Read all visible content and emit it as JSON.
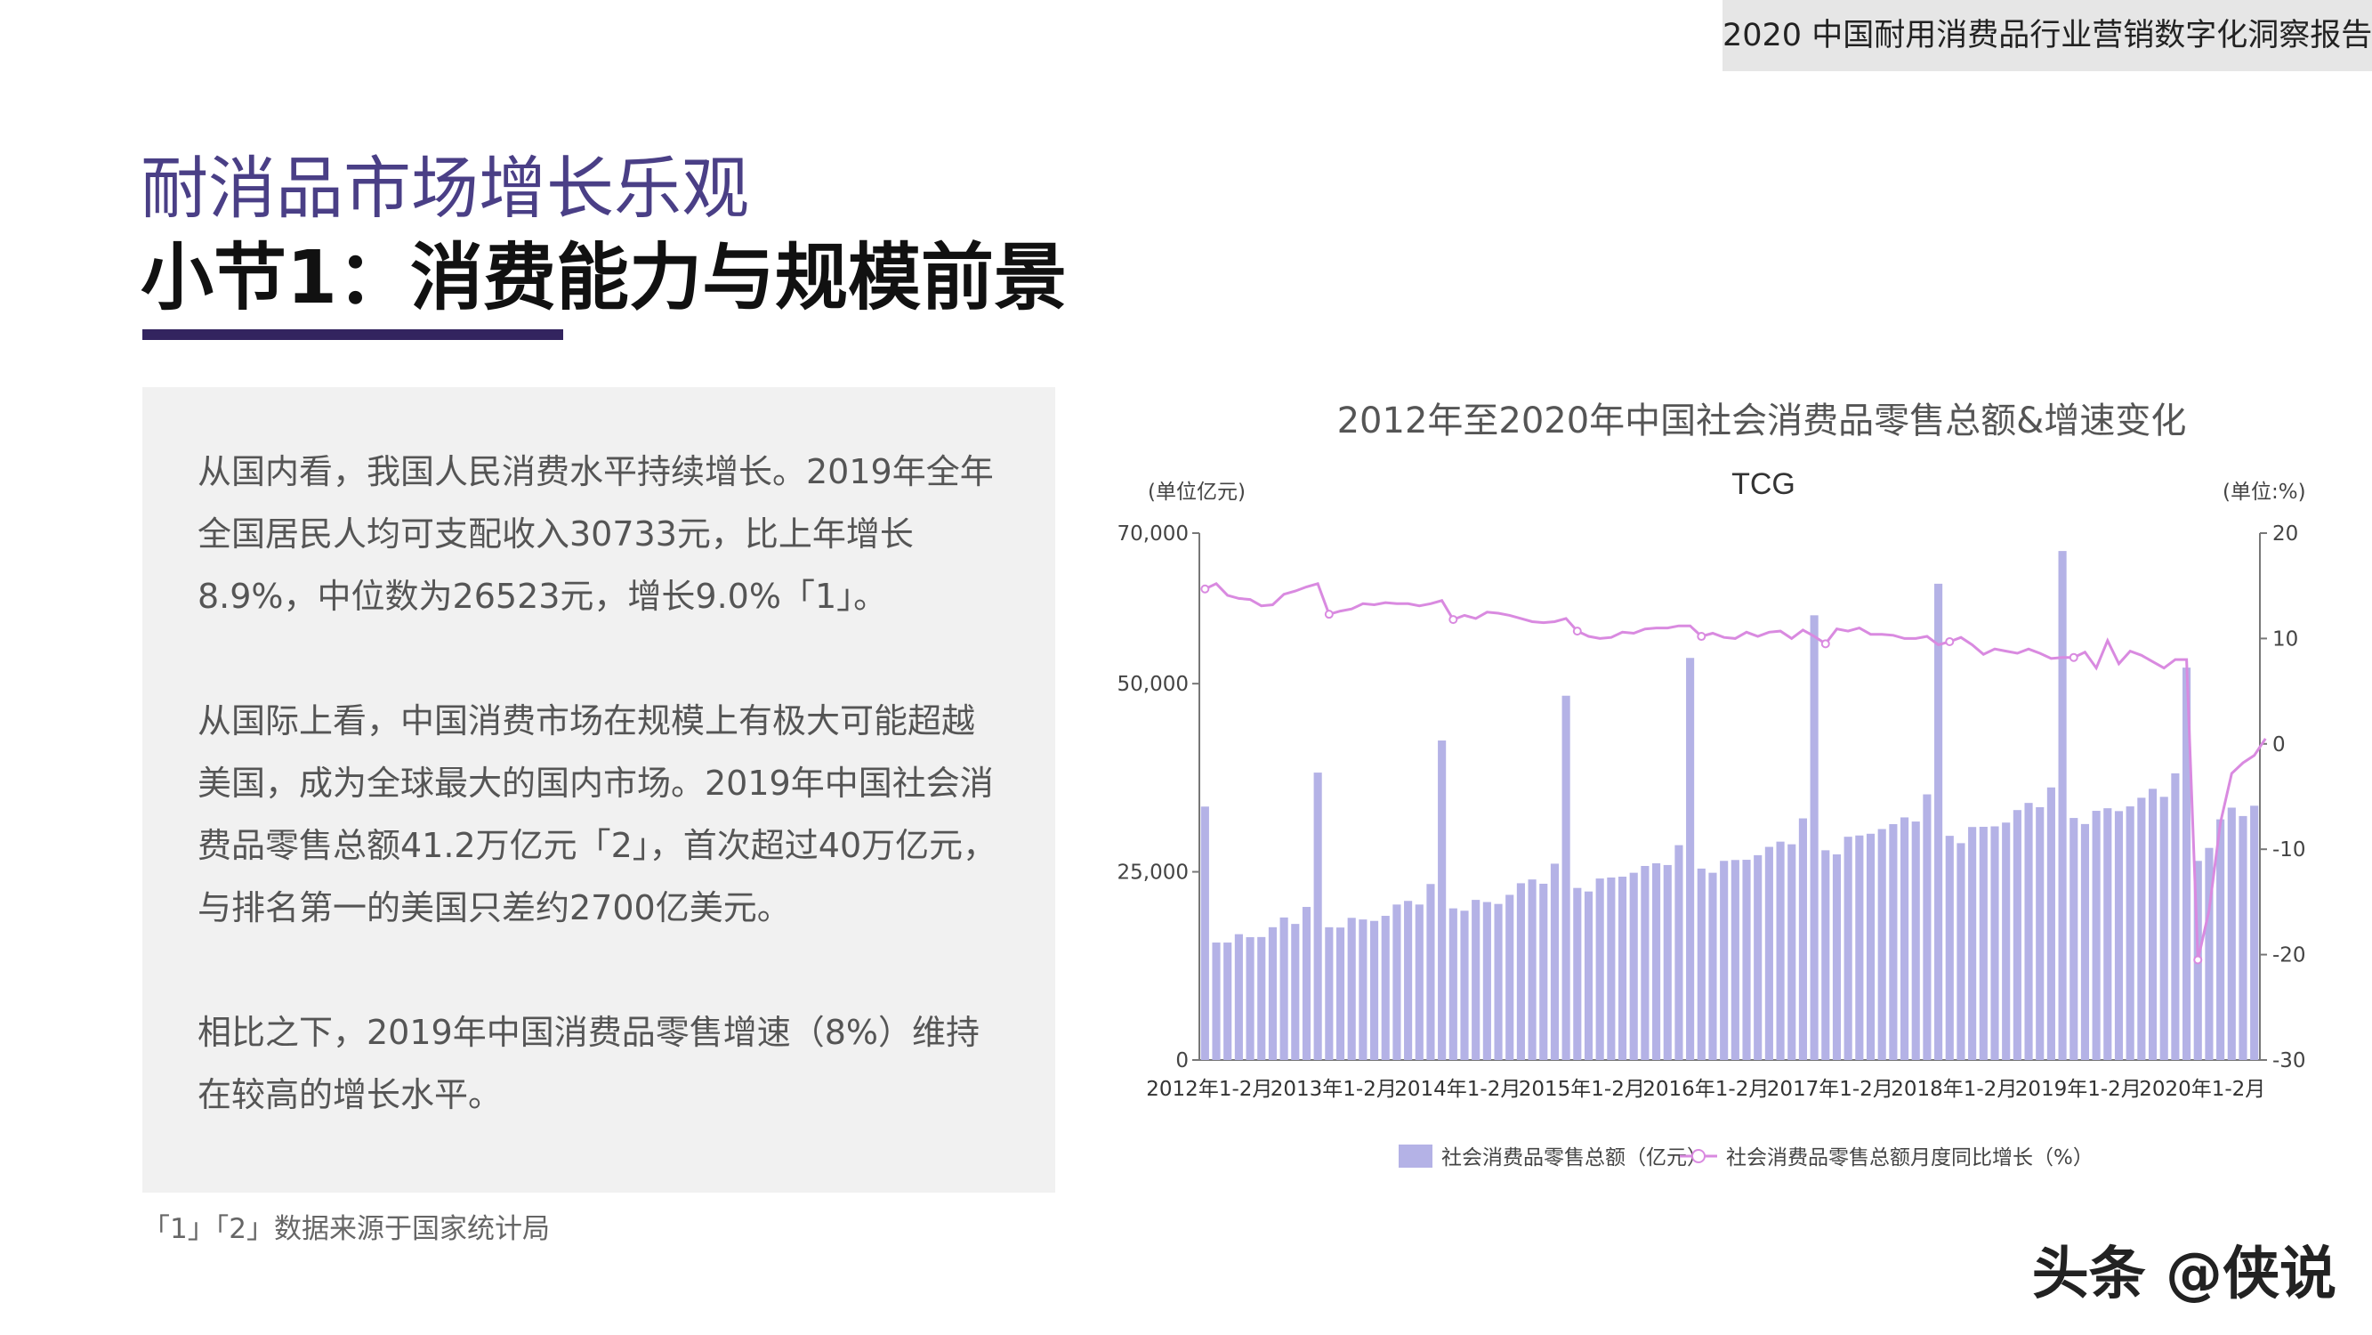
{
  "header": {
    "report_title": "2020 中国耐用消费品行业营销数字化洞察报告"
  },
  "titles": {
    "main": "耐消品市场增长乐观",
    "section": "小节1：消费能力与规模前景"
  },
  "paragraphs": [
    "从国内看，我国人民消费水平持续增长。2019年全年全国居民人均可支配收入30733元，比上年增长8.9%，中位数为26523元，增长9.0%「1」。",
    "从国际上看，中国消费市场在规模上有极大可能超越美国，成为全球最大的国内市场。2019年中国社会消费品零售总额41.2万亿元「2」，首次超过40万亿元，与排名第一的美国只差约2700亿美元。",
    "相比之下，2019年中国消费品零售增速（8%）维持在较高的增长水平。"
  ],
  "footnote": "「1」「2」数据来源于国家统计局",
  "watermark": "头条 @侠说",
  "colors": {
    "bar": "#b4b2e6",
    "line": "#d98ae0",
    "title_purple": "#4a3f86",
    "title_bar": "#33245f"
  },
  "chart_data": {
    "type": "bar+line",
    "outer_title": "2012年至2020年中国社会消费品零售总额&增速变化",
    "title": "TCG",
    "y_left_unit": "(单位亿元)",
    "y_right_unit": "(单位:%)",
    "y_left_range": [
      0,
      70000
    ],
    "y_right_range": [
      -30,
      20
    ],
    "y_left_ticks": [
      0,
      25000,
      50000,
      70000
    ],
    "y_left_tick_labels": [
      "0",
      "25,000",
      "50,000",
      "70,000"
    ],
    "y_right_ticks": [
      20,
      10,
      0,
      -10,
      -20,
      -30
    ],
    "x_tick_labels": [
      "2012年1-2月",
      "2013年1-2月",
      "2014年1-2月",
      "2015年1-2月",
      "2016年1-2月",
      "2017年1-2月",
      "2018年1-2月",
      "2019年1-2月",
      "2020年1-2月"
    ],
    "legend_position": "bottom",
    "series": [
      {
        "name": "社会消费品零售总额（亿元）",
        "type": "bar",
        "values": [
          33669,
          15604,
          15603,
          16715,
          16315,
          16334,
          17640,
          18934,
          18077,
          20335,
          38182,
          17637,
          17600,
          18886,
          18670,
          18477,
          19151,
          20653,
          21135,
          20654,
          23381,
          42445,
          20146,
          19830,
          21271,
          20985,
          20733,
          21942,
          23484,
          23984,
          23417,
          26081,
          48395,
          22858,
          22387,
          24111,
          24244,
          24355,
          24875,
          25777,
          26134,
          25904,
          28541,
          53419,
          25431,
          24873,
          26454,
          26570,
          26598,
          27210,
          28315,
          29010,
          28658,
          32101,
          59081,
          27863,
          27318,
          29659,
          29829,
          30059,
          30681,
          31339,
          32230,
          31681,
          35291,
          63275,
          29783,
          28807,
          30955,
          30981,
          31039,
          31542,
          33203,
          34153,
          33587,
          36211,
          67623,
          32154,
          31349,
          33103,
          33447,
          33067,
          33692,
          34841,
          36030,
          34959,
          38082,
          52130,
          26450,
          28178,
          31973,
          33526,
          32410,
          33781
        ]
      },
      {
        "name": "社会消费品零售总额月度同比增长（%）",
        "type": "line",
        "values": [
          14.7,
          15.2,
          14.1,
          13.8,
          13.7,
          13.1,
          13.2,
          14.2,
          14.5,
          14.9,
          15.2,
          12.3,
          12.6,
          12.8,
          13.3,
          13.2,
          13.4,
          13.3,
          13.3,
          13.1,
          13.3,
          13.6,
          11.8,
          12.2,
          11.9,
          12.5,
          12.4,
          12.2,
          11.9,
          11.6,
          11.5,
          11.6,
          11.9,
          10.7,
          10.2,
          10.0,
          10.1,
          10.6,
          10.5,
          10.9,
          11.0,
          11.0,
          11.2,
          11.2,
          10.2,
          10.5,
          10.1,
          10.0,
          10.6,
          10.2,
          10.6,
          10.7,
          10.0,
          10.8,
          10.2,
          9.5,
          10.9,
          10.7,
          11.0,
          10.4,
          10.4,
          10.3,
          10.0,
          10.0,
          10.2,
          9.4,
          9.7,
          10.1,
          9.4,
          8.5,
          9.0,
          8.8,
          8.6,
          9.0,
          8.6,
          8.1,
          8.2,
          8.2,
          8.7,
          7.2,
          9.8,
          7.6,
          8.8,
          8.4,
          7.8,
          7.2,
          8.0,
          8.0,
          -20.5,
          -15.8,
          -7.5,
          -2.8,
          -1.8,
          -1.1,
          0.5
        ]
      }
    ]
  }
}
